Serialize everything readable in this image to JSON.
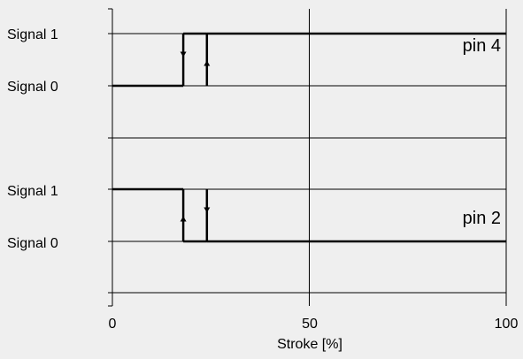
{
  "chart_data": {
    "type": "line",
    "xlabel": "Stroke [%]",
    "xlim": [
      0,
      100
    ],
    "x_ticks": [
      "0",
      "50",
      "100"
    ],
    "y_levels": [
      "Signal 1",
      "Signal 0"
    ],
    "grid": true,
    "panels": [
      {
        "name": "pin 4",
        "segments": [
          {
            "x": [
              0,
              18
            ],
            "level": "Signal 0"
          },
          {
            "x": [
              18,
              18
            ],
            "level": "transition",
            "direction": "down"
          },
          {
            "x": [
              18,
              24
            ],
            "level": "Signal 1"
          },
          {
            "x": [
              24,
              24
            ],
            "level": "transition",
            "direction": "up"
          },
          {
            "x": [
              24,
              100
            ],
            "level": "Signal 1"
          }
        ]
      },
      {
        "name": "pin 2",
        "segments": [
          {
            "x": [
              0,
              18
            ],
            "level": "Signal 1"
          },
          {
            "x": [
              18,
              18
            ],
            "level": "transition",
            "direction": "up"
          },
          {
            "x": [
              18,
              24
            ],
            "level": "Signal 0"
          },
          {
            "x": [
              24,
              24
            ],
            "level": "transition",
            "direction": "down"
          },
          {
            "x": [
              24,
              100
            ],
            "level": "Signal 0"
          }
        ]
      }
    ]
  }
}
